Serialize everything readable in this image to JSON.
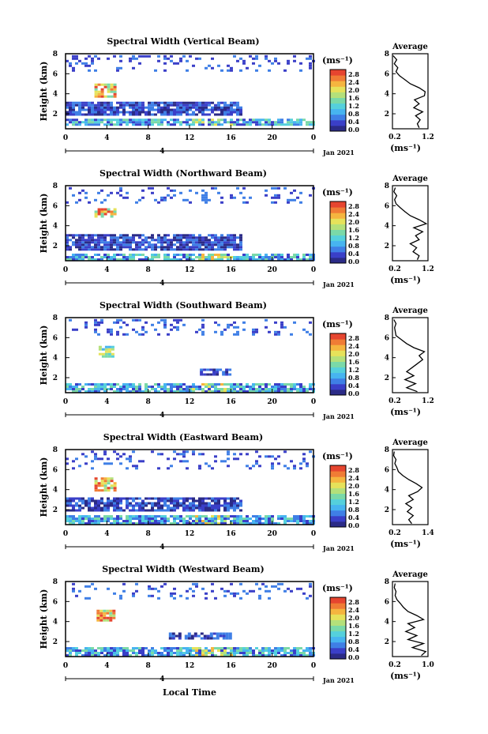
{
  "colorbar": {
    "unit": "(ms⁻¹)",
    "labels": [
      "2.8",
      "2.4",
      "2.0",
      "1.6",
      "1.2",
      "0.8",
      "0.4",
      "0.0"
    ],
    "colors": [
      "#2b2b87",
      "#3a3fc8",
      "#3f7fe6",
      "#47b4f0",
      "#55d0dc",
      "#7ad9a8",
      "#b4e07a",
      "#e6e25a",
      "#f5b53f",
      "#f07c35",
      "#e6452f"
    ]
  },
  "xaxis_label": "Local Time",
  "chart_data": [
    {
      "type": "heatmap",
      "title": "Spectral Width (Vertical Beam)",
      "ylabel": "Height (km)",
      "x_ticks": [
        "0",
        "4",
        "8",
        "12",
        "16",
        "20",
        "0"
      ],
      "y_ticks": [
        "8",
        "6",
        "4",
        "2"
      ],
      "xlim": [
        0,
        24
      ],
      "ylim": [
        0.5,
        8
      ],
      "date_tick": "4",
      "date_label": "Jan 2021",
      "layers": [
        {
          "y": [
            0.8,
            1.3
          ],
          "t": [
            0,
            24
          ],
          "level": "low-mid",
          "with_bright_patch": true
        },
        {
          "y": [
            1.8,
            2.3
          ],
          "t": [
            0,
            17
          ],
          "level": "low"
        },
        {
          "y": [
            2.5,
            3.0
          ],
          "t": [
            0,
            17
          ],
          "level": "low"
        },
        {
          "y": [
            3.6,
            4.8
          ],
          "t": [
            2.8,
            4.8
          ],
          "level": "high"
        },
        {
          "y": [
            6.2,
            7.8
          ],
          "t": [
            0,
            24
          ],
          "level": "sparse-low"
        }
      ],
      "average": {
        "title": "Average",
        "xlim": [
          0.2,
          1.2
        ],
        "x_ticks": [
          "0.2",
          "1.2"
        ],
        "y_ticks": [
          "8",
          "6",
          "4",
          "2"
        ],
        "xlabel": "(ms⁻¹)",
        "profile": [
          [
            0.95,
            0.6
          ],
          [
            0.9,
            1.0
          ],
          [
            0.98,
            1.4
          ],
          [
            0.85,
            1.8
          ],
          [
            1.05,
            2.2
          ],
          [
            0.8,
            2.6
          ],
          [
            0.95,
            3.0
          ],
          [
            0.82,
            3.4
          ],
          [
            1.1,
            3.8
          ],
          [
            1.12,
            4.2
          ],
          [
            0.95,
            4.6
          ],
          [
            0.7,
            5.0
          ],
          [
            0.55,
            5.4
          ],
          [
            0.4,
            5.8
          ],
          [
            0.3,
            6.2
          ],
          [
            0.35,
            6.6
          ],
          [
            0.25,
            7.0
          ],
          [
            0.32,
            7.4
          ],
          [
            0.22,
            7.8
          ]
        ]
      }
    },
    {
      "type": "heatmap",
      "title": "Spectral Width (Northward Beam)",
      "ylabel": "Height (km)",
      "x_ticks": [
        "0",
        "4",
        "8",
        "12",
        "16",
        "20",
        "0"
      ],
      "y_ticks": [
        "8",
        "6",
        "4",
        "2"
      ],
      "xlim": [
        0,
        24
      ],
      "ylim": [
        0.5,
        8
      ],
      "date_tick": "4",
      "date_label": "Jan 2021",
      "layers": [
        {
          "y": [
            0.5,
            1.2
          ],
          "t": [
            0,
            24
          ],
          "level": "low-mid",
          "with_bright_patch": true
        },
        {
          "y": [
            1.5,
            3.0
          ],
          "t": [
            0,
            17
          ],
          "level": "low"
        },
        {
          "y": [
            4.8,
            5.6
          ],
          "t": [
            2.8,
            4.8
          ],
          "level": "high"
        },
        {
          "y": [
            6.2,
            7.8
          ],
          "t": [
            0,
            24
          ],
          "level": "sparse-low"
        }
      ],
      "average": {
        "title": "Average",
        "xlim": [
          0.2,
          1.2
        ],
        "x_ticks": [
          "0.2",
          "1.2"
        ],
        "y_ticks": [
          "8",
          "6",
          "4",
          "2"
        ],
        "xlabel": "(ms⁻¹)",
        "profile": [
          [
            0.9,
            0.6
          ],
          [
            0.95,
            1.0
          ],
          [
            0.78,
            1.4
          ],
          [
            0.88,
            1.8
          ],
          [
            0.7,
            2.2
          ],
          [
            0.95,
            2.6
          ],
          [
            0.85,
            3.0
          ],
          [
            1.05,
            3.4
          ],
          [
            0.8,
            3.8
          ],
          [
            1.15,
            4.2
          ],
          [
            0.95,
            4.6
          ],
          [
            0.7,
            5.0
          ],
          [
            0.55,
            5.4
          ],
          [
            0.42,
            5.8
          ],
          [
            0.3,
            6.2
          ],
          [
            0.26,
            6.6
          ],
          [
            0.32,
            7.0
          ],
          [
            0.24,
            7.4
          ],
          [
            0.28,
            7.8
          ]
        ]
      }
    },
    {
      "type": "heatmap",
      "title": "Spectral Width (Southward Beam)",
      "ylabel": "Height (km)",
      "x_ticks": [
        "0",
        "4",
        "8",
        "12",
        "16",
        "20",
        "0"
      ],
      "y_ticks": [
        "8",
        "6",
        "4",
        "2"
      ],
      "xlim": [
        0,
        24
      ],
      "ylim": [
        0.5,
        8
      ],
      "date_tick": "4",
      "date_label": "Jan 2021",
      "layers": [
        {
          "y": [
            0.5,
            1.3
          ],
          "t": [
            0,
            24
          ],
          "level": "low-mid",
          "with_bright_patch": true
        },
        {
          "y": [
            2.2,
            2.9
          ],
          "t": [
            13,
            16
          ],
          "level": "low"
        },
        {
          "y": [
            4.0,
            5.0
          ],
          "t": [
            3.2,
            4.6
          ],
          "level": "mid-high"
        },
        {
          "y": [
            6.2,
            7.8
          ],
          "t": [
            0,
            24
          ],
          "level": "sparse-low"
        }
      ],
      "average": {
        "title": "Average",
        "xlim": [
          0.2,
          1.2
        ],
        "x_ticks": [
          "0.2",
          "1.2"
        ],
        "y_ticks": [
          "8",
          "6",
          "4",
          "2"
        ],
        "xlabel": "(ms⁻¹)",
        "profile": [
          [
            0.9,
            0.6
          ],
          [
            0.6,
            1.0
          ],
          [
            0.85,
            1.4
          ],
          [
            0.55,
            1.8
          ],
          [
            0.8,
            2.2
          ],
          [
            0.6,
            2.6
          ],
          [
            0.75,
            3.0
          ],
          [
            0.9,
            3.4
          ],
          [
            1.05,
            3.8
          ],
          [
            0.95,
            4.2
          ],
          [
            1.1,
            4.6
          ],
          [
            0.8,
            5.0
          ],
          [
            0.6,
            5.4
          ],
          [
            0.45,
            5.8
          ],
          [
            0.3,
            6.2
          ],
          [
            0.28,
            6.6
          ],
          [
            0.26,
            7.0
          ],
          [
            0.3,
            7.4
          ],
          [
            0.24,
            7.8
          ]
        ]
      }
    },
    {
      "type": "heatmap",
      "title": "Spectral Width (Eastward Beam)",
      "ylabel": "Height (km)",
      "x_ticks": [
        "0",
        "4",
        "8",
        "12",
        "16",
        "20",
        "0"
      ],
      "y_ticks": [
        "8",
        "6",
        "4",
        "2"
      ],
      "xlim": [
        0,
        24
      ],
      "ylim": [
        0.5,
        8
      ],
      "date_tick": "4",
      "date_label": "Jan 2021",
      "layers": [
        {
          "y": [
            0.5,
            1.3
          ],
          "t": [
            0,
            24
          ],
          "level": "low-mid",
          "with_bright_patch": true
        },
        {
          "y": [
            1.8,
            3.0
          ],
          "t": [
            0,
            17
          ],
          "level": "low"
        },
        {
          "y": [
            3.8,
            5.2
          ],
          "t": [
            2.8,
            4.8
          ],
          "level": "high"
        },
        {
          "y": [
            6.0,
            7.8
          ],
          "t": [
            0,
            24
          ],
          "level": "sparse-low"
        }
      ],
      "average": {
        "title": "Average",
        "xlim": [
          0.2,
          1.4
        ],
        "x_ticks": [
          "0.2",
          "1.4"
        ],
        "y_ticks": [
          "8",
          "6",
          "4",
          "2"
        ],
        "xlabel": "(ms⁻¹)",
        "profile": [
          [
            0.85,
            0.6
          ],
          [
            0.75,
            1.0
          ],
          [
            0.9,
            1.4
          ],
          [
            0.7,
            1.8
          ],
          [
            0.85,
            2.2
          ],
          [
            0.65,
            2.6
          ],
          [
            0.9,
            3.0
          ],
          [
            0.75,
            3.4
          ],
          [
            1.05,
            3.8
          ],
          [
            1.2,
            4.2
          ],
          [
            1.0,
            4.6
          ],
          [
            0.75,
            5.0
          ],
          [
            0.55,
            5.4
          ],
          [
            0.4,
            5.8
          ],
          [
            0.35,
            6.2
          ],
          [
            0.28,
            6.6
          ],
          [
            0.32,
            7.0
          ],
          [
            0.24,
            7.4
          ],
          [
            0.26,
            7.8
          ]
        ]
      }
    },
    {
      "type": "heatmap",
      "title": "Spectral Width (Westward Beam)",
      "ylabel": "Height (km)",
      "x_ticks": [
        "0",
        "4",
        "8",
        "12",
        "16",
        "20",
        "0"
      ],
      "y_ticks": [
        "8",
        "6",
        "4",
        "2"
      ],
      "xlim": [
        0,
        24
      ],
      "ylim": [
        0.5,
        8
      ],
      "date_tick": "4",
      "date_label": "Jan 2021",
      "layers": [
        {
          "y": [
            0.5,
            1.3
          ],
          "t": [
            0,
            24
          ],
          "level": "low-mid",
          "with_bright_patch": true
        },
        {
          "y": [
            2.2,
            2.8
          ],
          "t": [
            10,
            16
          ],
          "level": "low"
        },
        {
          "y": [
            4.0,
            5.0
          ],
          "t": [
            3.0,
            4.6
          ],
          "level": "high"
        },
        {
          "y": [
            6.2,
            7.8
          ],
          "t": [
            0,
            24
          ],
          "level": "sparse-low"
        }
      ],
      "average": {
        "title": "Average",
        "xlim": [
          0.2,
          1.0
        ],
        "x_ticks": [
          "0.2",
          "1.0"
        ],
        "y_ticks": [
          "8",
          "6",
          "4",
          "2"
        ],
        "xlabel": "(ms⁻¹)",
        "profile": [
          [
            0.85,
            0.6
          ],
          [
            0.95,
            1.0
          ],
          [
            0.65,
            1.4
          ],
          [
            0.9,
            1.8
          ],
          [
            0.55,
            2.2
          ],
          [
            0.75,
            2.6
          ],
          [
            0.5,
            3.0
          ],
          [
            0.7,
            3.4
          ],
          [
            0.55,
            3.8
          ],
          [
            0.9,
            4.2
          ],
          [
            0.75,
            4.6
          ],
          [
            0.55,
            5.0
          ],
          [
            0.45,
            5.4
          ],
          [
            0.38,
            5.8
          ],
          [
            0.3,
            6.2
          ],
          [
            0.26,
            6.6
          ],
          [
            0.28,
            7.0
          ],
          [
            0.24,
            7.4
          ],
          [
            0.26,
            7.8
          ]
        ]
      }
    }
  ]
}
